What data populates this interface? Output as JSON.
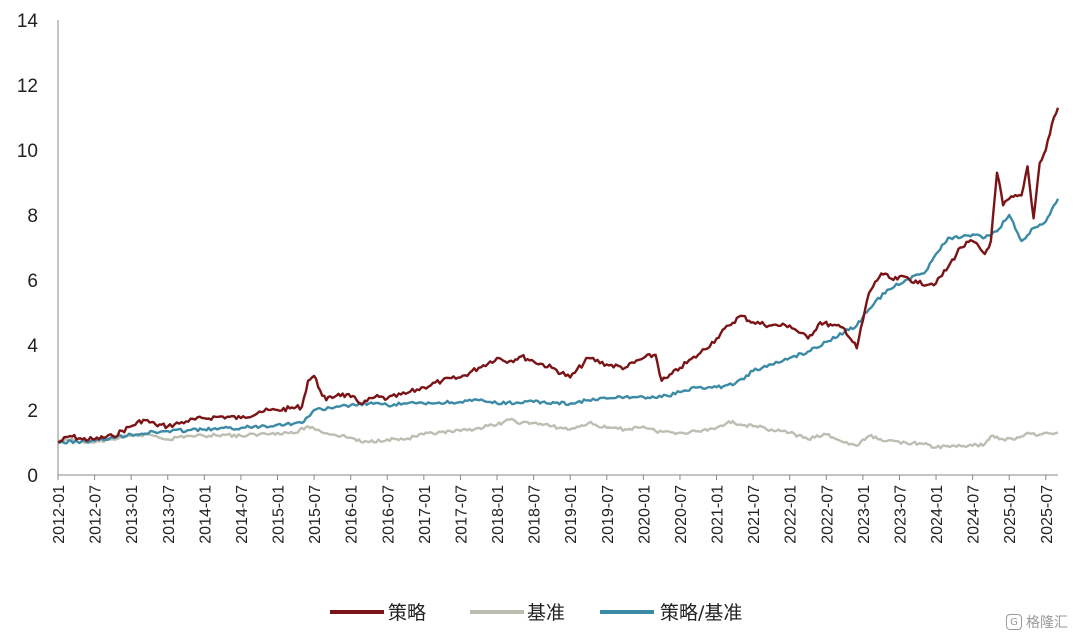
{
  "chart_data": {
    "type": "line",
    "y_ticks": [
      "0",
      "2",
      "4",
      "6",
      "8",
      "10",
      "12",
      "14"
    ],
    "ylim": [
      0,
      14
    ],
    "x_ticks": [
      "2012-01",
      "2012-07",
      "2013-01",
      "2013-07",
      "2014-01",
      "2014-07",
      "2015-01",
      "2015-07",
      "2016-01",
      "2016-07",
      "2017-01",
      "2017-07",
      "2018-01",
      "2018-07",
      "2019-01",
      "2019-07",
      "2020-01",
      "2020-07",
      "2021-01",
      "2021-07",
      "2022-01",
      "2022-07",
      "2023-01",
      "2023-07",
      "2024-01",
      "2024-07",
      "2025-01",
      "2025-07"
    ],
    "xlim": [
      "2012-01",
      "2025-09"
    ],
    "grid": false,
    "legend_position": "bottom",
    "series": [
      {
        "name": "策略",
        "color": "#7b1416",
        "points": [
          [
            "2012-01",
            1.0
          ],
          [
            "2012-03",
            1.2
          ],
          [
            "2012-05",
            1.1
          ],
          [
            "2012-07",
            1.1
          ],
          [
            "2012-10",
            1.2
          ],
          [
            "2013-01",
            1.5
          ],
          [
            "2013-03",
            1.7
          ],
          [
            "2013-05",
            1.55
          ],
          [
            "2013-07",
            1.5
          ],
          [
            "2013-10",
            1.65
          ],
          [
            "2014-01",
            1.75
          ],
          [
            "2014-04",
            1.8
          ],
          [
            "2014-07",
            1.75
          ],
          [
            "2014-10",
            1.95
          ],
          [
            "2015-01",
            2.0
          ],
          [
            "2015-03",
            2.05
          ],
          [
            "2015-05",
            2.1
          ],
          [
            "2015-06",
            2.9
          ],
          [
            "2015-07",
            3.05
          ],
          [
            "2015-08",
            2.6
          ],
          [
            "2015-09",
            2.3
          ],
          [
            "2015-11",
            2.5
          ],
          [
            "2016-01",
            2.4
          ],
          [
            "2016-03",
            2.2
          ],
          [
            "2016-05",
            2.4
          ],
          [
            "2016-07",
            2.35
          ],
          [
            "2016-10",
            2.5
          ],
          [
            "2017-01",
            2.7
          ],
          [
            "2017-04",
            2.9
          ],
          [
            "2017-07",
            3.0
          ],
          [
            "2017-10",
            3.3
          ],
          [
            "2018-01",
            3.6
          ],
          [
            "2018-03",
            3.5
          ],
          [
            "2018-05",
            3.65
          ],
          [
            "2018-07",
            3.5
          ],
          [
            "2018-10",
            3.3
          ],
          [
            "2019-01",
            3.0
          ],
          [
            "2019-04",
            3.6
          ],
          [
            "2019-07",
            3.4
          ],
          [
            "2019-10",
            3.3
          ],
          [
            "2020-01",
            3.6
          ],
          [
            "2020-03",
            3.7
          ],
          [
            "2020-04",
            2.9
          ],
          [
            "2020-05",
            3.0
          ],
          [
            "2020-07",
            3.3
          ],
          [
            "2020-10",
            3.7
          ],
          [
            "2021-01",
            4.2
          ],
          [
            "2021-03",
            4.6
          ],
          [
            "2021-05",
            4.9
          ],
          [
            "2021-07",
            4.7
          ],
          [
            "2021-10",
            4.6
          ],
          [
            "2022-01",
            4.6
          ],
          [
            "2022-04",
            4.2
          ],
          [
            "2022-06",
            4.7
          ],
          [
            "2022-08",
            4.6
          ],
          [
            "2022-10",
            4.5
          ],
          [
            "2022-12",
            3.9
          ],
          [
            "2023-02",
            5.6
          ],
          [
            "2023-04",
            6.2
          ],
          [
            "2023-06",
            6.0
          ],
          [
            "2023-08",
            6.1
          ],
          [
            "2023-10",
            5.9
          ],
          [
            "2024-01",
            5.9
          ],
          [
            "2024-03",
            6.4
          ],
          [
            "2024-05",
            7.0
          ],
          [
            "2024-07",
            7.2
          ],
          [
            "2024-09",
            6.8
          ],
          [
            "2024-10",
            7.2
          ],
          [
            "2024-11",
            9.3
          ],
          [
            "2024-12",
            8.3
          ],
          [
            "2025-01",
            8.5
          ],
          [
            "2025-03",
            8.6
          ],
          [
            "2025-04",
            9.5
          ],
          [
            "2025-05",
            7.9
          ],
          [
            "2025-06",
            9.6
          ],
          [
            "2025-07",
            10.0
          ],
          [
            "2025-08",
            10.8
          ],
          [
            "2025-09",
            11.3
          ]
        ]
      },
      {
        "name": "基准",
        "color": "#bdbdb2",
        "points": [
          [
            "2012-01",
            1.0
          ],
          [
            "2012-03",
            1.1
          ],
          [
            "2012-07",
            1.0
          ],
          [
            "2012-10",
            1.1
          ],
          [
            "2013-01",
            1.2
          ],
          [
            "2013-04",
            1.25
          ],
          [
            "2013-07",
            1.1
          ],
          [
            "2013-10",
            1.2
          ],
          [
            "2014-01",
            1.2
          ],
          [
            "2014-04",
            1.25
          ],
          [
            "2014-07",
            1.2
          ],
          [
            "2014-10",
            1.25
          ],
          [
            "2015-01",
            1.3
          ],
          [
            "2015-04",
            1.3
          ],
          [
            "2015-06",
            1.5
          ],
          [
            "2015-08",
            1.35
          ],
          [
            "2015-10",
            1.25
          ],
          [
            "2016-01",
            1.15
          ],
          [
            "2016-03",
            1.0
          ],
          [
            "2016-07",
            1.1
          ],
          [
            "2016-10",
            1.1
          ],
          [
            "2017-01",
            1.25
          ],
          [
            "2017-07",
            1.35
          ],
          [
            "2017-10",
            1.45
          ],
          [
            "2018-01",
            1.55
          ],
          [
            "2018-03",
            1.7
          ],
          [
            "2018-05",
            1.6
          ],
          [
            "2018-07",
            1.6
          ],
          [
            "2018-10",
            1.5
          ],
          [
            "2019-01",
            1.4
          ],
          [
            "2019-04",
            1.6
          ],
          [
            "2019-07",
            1.45
          ],
          [
            "2019-10",
            1.4
          ],
          [
            "2020-01",
            1.5
          ],
          [
            "2020-03",
            1.35
          ],
          [
            "2020-07",
            1.3
          ],
          [
            "2020-10",
            1.35
          ],
          [
            "2021-01",
            1.45
          ],
          [
            "2021-03",
            1.65
          ],
          [
            "2021-05",
            1.55
          ],
          [
            "2021-07",
            1.5
          ],
          [
            "2021-10",
            1.4
          ],
          [
            "2022-01",
            1.3
          ],
          [
            "2022-04",
            1.1
          ],
          [
            "2022-07",
            1.25
          ],
          [
            "2022-10",
            1.0
          ],
          [
            "2022-12",
            0.9
          ],
          [
            "2023-02",
            1.2
          ],
          [
            "2023-05",
            1.05
          ],
          [
            "2023-08",
            1.0
          ],
          [
            "2023-11",
            0.95
          ],
          [
            "2024-01",
            0.85
          ],
          [
            "2024-04",
            0.9
          ],
          [
            "2024-07",
            0.9
          ],
          [
            "2024-09",
            0.95
          ],
          [
            "2024-10",
            1.2
          ],
          [
            "2024-12",
            1.1
          ],
          [
            "2025-02",
            1.1
          ],
          [
            "2025-04",
            1.3
          ],
          [
            "2025-06",
            1.25
          ],
          [
            "2025-09",
            1.3
          ]
        ]
      },
      {
        "name": "策略/基准",
        "color": "#3b8aa6",
        "points": [
          [
            "2012-01",
            1.0
          ],
          [
            "2012-07",
            1.05
          ],
          [
            "2013-01",
            1.25
          ],
          [
            "2013-07",
            1.35
          ],
          [
            "2014-01",
            1.4
          ],
          [
            "2014-07",
            1.45
          ],
          [
            "2015-01",
            1.55
          ],
          [
            "2015-05",
            1.6
          ],
          [
            "2015-07",
            2.0
          ],
          [
            "2015-10",
            2.05
          ],
          [
            "2016-01",
            2.15
          ],
          [
            "2016-04",
            2.2
          ],
          [
            "2016-07",
            2.15
          ],
          [
            "2016-10",
            2.2
          ],
          [
            "2017-01",
            2.2
          ],
          [
            "2017-07",
            2.25
          ],
          [
            "2017-10",
            2.3
          ],
          [
            "2018-01",
            2.2
          ],
          [
            "2018-07",
            2.25
          ],
          [
            "2019-01",
            2.2
          ],
          [
            "2019-04",
            2.3
          ],
          [
            "2019-07",
            2.35
          ],
          [
            "2019-10",
            2.4
          ],
          [
            "2020-01",
            2.4
          ],
          [
            "2020-04",
            2.4
          ],
          [
            "2020-07",
            2.55
          ],
          [
            "2020-10",
            2.7
          ],
          [
            "2021-01",
            2.7
          ],
          [
            "2021-04",
            2.8
          ],
          [
            "2021-07",
            3.2
          ],
          [
            "2021-10",
            3.4
          ],
          [
            "2022-01",
            3.6
          ],
          [
            "2022-04",
            3.8
          ],
          [
            "2022-07",
            4.1
          ],
          [
            "2022-10",
            4.4
          ],
          [
            "2022-12",
            4.6
          ],
          [
            "2023-02",
            5.1
          ],
          [
            "2023-05",
            5.7
          ],
          [
            "2023-08",
            6.0
          ],
          [
            "2023-11",
            6.2
          ],
          [
            "2024-01",
            6.8
          ],
          [
            "2024-03",
            7.3
          ],
          [
            "2024-05",
            7.3
          ],
          [
            "2024-07",
            7.4
          ],
          [
            "2024-09",
            7.3
          ],
          [
            "2024-11",
            7.5
          ],
          [
            "2025-01",
            8.0
          ],
          [
            "2025-03",
            7.2
          ],
          [
            "2025-05",
            7.6
          ],
          [
            "2025-07",
            7.8
          ],
          [
            "2025-09",
            8.5
          ]
        ]
      }
    ]
  },
  "watermark": {
    "text": "格隆汇",
    "icon": "G"
  }
}
